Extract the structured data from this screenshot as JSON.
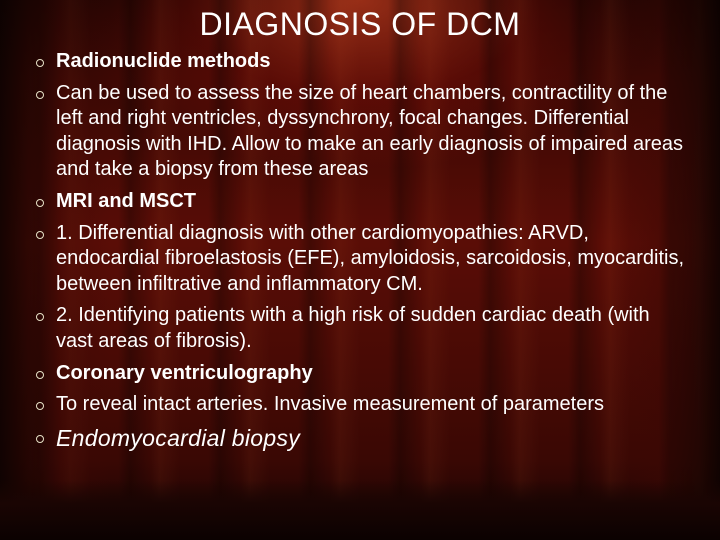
{
  "title": "DIAGNOSIS OF DCM",
  "bullets": [
    {
      "text": "Radionuclide methods"
    },
    {
      "text": "Can be used to assess  the size of heart chambers, contractility of the left and right ventricles, dyssynchrony, focal changes. Differential diagnosis with IHD. Allow to make an early diagnosis of impaired areas and take a biopsy from these areas"
    },
    {
      "text": "MRI and MSCT"
    },
    {
      "text": "1. Differential diagnosis with other cardiomyopathies: ARVD, endocardial fibroelastosis (EFE), amyloidosis, sarcoidosis, myocarditis, between infiltrative and inflammatory CM."
    },
    {
      "text": "2. Identifying patients with a high risk of sudden cardiac death (with vast areas of fibrosis)."
    },
    {
      "text": "Coronary ventriculography"
    },
    {
      "text": "To reveal intact arteries. Invasive measurement of parameters"
    },
    {
      "text": "Endomyocardial biopsy"
    }
  ],
  "colors": {
    "text": "#ffffff",
    "bullet_ring": "#e8e2c8",
    "bg_dark": "#1a0402",
    "bg_mid": "#5a0d06"
  }
}
